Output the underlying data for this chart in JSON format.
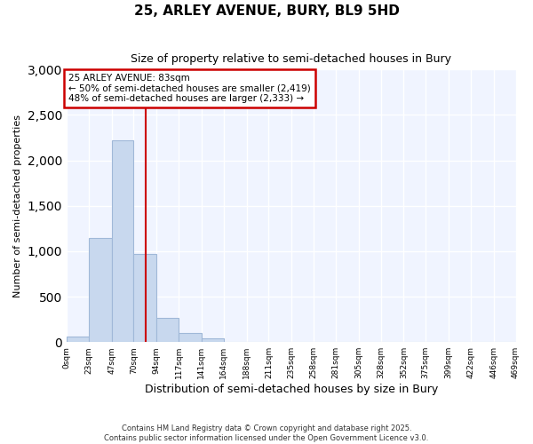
{
  "title": "25, ARLEY AVENUE, BURY, BL9 5HD",
  "subtitle": "Size of property relative to semi-detached houses in Bury",
  "xlabel": "Distribution of semi-detached houses by size in Bury",
  "ylabel": "Number of semi-detached properties",
  "property_label": "25 ARLEY AVENUE: 83sqm",
  "annotation_line1": "← 50% of semi-detached houses are smaller (2,419)",
  "annotation_line2": "48% of semi-detached houses are larger (2,333) →",
  "bin_edges": [
    0,
    23,
    47,
    70,
    94,
    117,
    141,
    164,
    188,
    211,
    235,
    258,
    281,
    305,
    328,
    352,
    375,
    399,
    422,
    446,
    469
  ],
  "bar_values": [
    60,
    1150,
    2220,
    970,
    265,
    100,
    40,
    5,
    3,
    1,
    0,
    0,
    0,
    0,
    0,
    0,
    0,
    0,
    0,
    0
  ],
  "bar_color": "#c8d8ee",
  "bar_edge_color": "#a0b8d8",
  "vline_color": "#cc0000",
  "vline_x": 83,
  "ylim": [
    0,
    3000
  ],
  "yticks": [
    0,
    500,
    1000,
    1500,
    2000,
    2500,
    3000
  ],
  "footer_line1": "Contains HM Land Registry data © Crown copyright and database right 2025.",
  "footer_line2": "Contains public sector information licensed under the Open Government Licence v3.0.",
  "background_color": "#ffffff",
  "plot_bg_color": "#f0f4ff"
}
